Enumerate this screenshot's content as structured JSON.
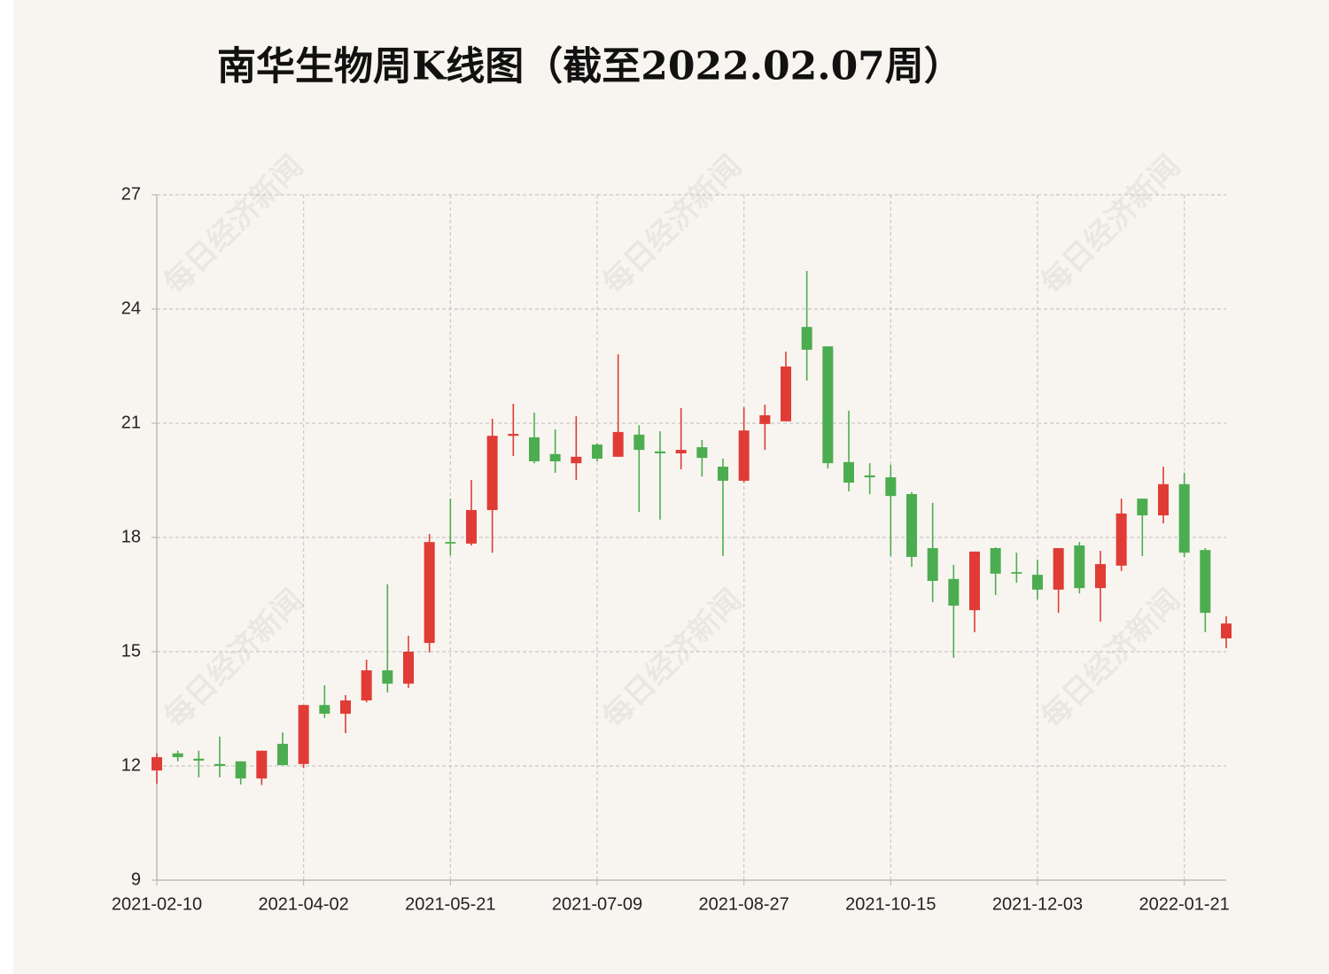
{
  "chart_data": {
    "type": "candlestick",
    "title": "南华生物周K线图（截至2022.02.07周）",
    "watermark": "每日经济新闻",
    "categories": [
      "2021-02-10",
      null,
      null,
      null,
      null,
      null,
      null,
      "2021-04-02",
      null,
      null,
      null,
      null,
      null,
      null,
      "2021-05-21",
      null,
      null,
      null,
      null,
      null,
      null,
      "2021-07-09",
      null,
      null,
      null,
      null,
      null,
      null,
      "2021-08-27",
      null,
      null,
      null,
      null,
      null,
      null,
      "2021-10-15",
      null,
      null,
      null,
      null,
      null,
      null,
      "2021-12-03",
      null,
      null,
      null,
      null,
      null,
      null,
      "2022-01-21",
      null,
      null
    ],
    "open": [
      11.88,
      12.33,
      12.19,
      12.05,
      12.12,
      11.67,
      12.58,
      12.05,
      13.6,
      13.37,
      13.72,
      14.51,
      14.16,
      15.23,
      17.88,
      17.84,
      18.72,
      20.67,
      20.63,
      20.19,
      19.95,
      20.44,
      20.12,
      20.7,
      20.26,
      20.21,
      20.37,
      19.86,
      19.49,
      20.98,
      21.05,
      23.53,
      23.02,
      19.98,
      19.63,
      19.58,
      19.14,
      17.72,
      16.91,
      16.09,
      17.72,
      17.09,
      17.02,
      16.63,
      17.79,
      16.67,
      17.26,
      19.02,
      18.58,
      19.4,
      17.67,
      15.35
    ],
    "high": [
      12.33,
      12.4,
      12.4,
      12.77,
      12.12,
      12.4,
      12.88,
      13.6,
      14.12,
      13.86,
      14.79,
      16.77,
      15.42,
      18.09,
      19.02,
      19.51,
      21.12,
      21.51,
      21.28,
      20.84,
      21.19,
      20.47,
      22.81,
      20.95,
      20.79,
      21.4,
      20.56,
      20.07,
      21.42,
      21.49,
      22.88,
      25.0,
      23.02,
      21.33,
      19.95,
      19.91,
      19.19,
      18.91,
      17.28,
      17.63,
      17.74,
      17.6,
      17.42,
      17.72,
      17.88,
      17.65,
      19.02,
      19.02,
      19.86,
      19.7,
      17.72,
      15.93
    ],
    "low": [
      11.53,
      12.12,
      11.7,
      11.7,
      11.51,
      11.5,
      12.02,
      11.95,
      13.26,
      12.86,
      13.67,
      13.93,
      14.05,
      14.98,
      17.53,
      17.79,
      17.6,
      20.14,
      19.95,
      19.7,
      19.51,
      20.0,
      20.12,
      18.67,
      18.47,
      19.79,
      19.6,
      17.51,
      19.44,
      20.3,
      21.05,
      22.12,
      19.81,
      19.21,
      19.14,
      17.51,
      17.23,
      16.3,
      14.84,
      15.51,
      16.49,
      16.81,
      16.37,
      16.02,
      16.53,
      15.79,
      17.12,
      17.51,
      18.37,
      17.49,
      15.51,
      15.09
    ],
    "close": [
      12.23,
      12.23,
      12.14,
      12.0,
      11.67,
      12.4,
      12.02,
      13.6,
      13.37,
      13.72,
      14.51,
      14.16,
      15.0,
      17.88,
      17.84,
      18.72,
      20.67,
      20.72,
      20.0,
      20.0,
      20.12,
      20.07,
      20.77,
      20.3,
      20.21,
      20.3,
      20.09,
      19.49,
      20.81,
      21.21,
      22.49,
      22.93,
      19.95,
      19.44,
      19.58,
      19.09,
      17.49,
      16.86,
      16.21,
      17.63,
      17.05,
      17.05,
      16.63,
      17.72,
      16.67,
      17.3,
      18.63,
      18.58,
      19.4,
      17.6,
      16.02,
      15.74
    ],
    "up_color": "#e03c35",
    "down_color": "#4cad50",
    "ylim": [
      9,
      27
    ],
    "yticks": [
      9,
      12,
      15,
      18,
      21,
      24,
      27
    ],
    "grid": true
  }
}
